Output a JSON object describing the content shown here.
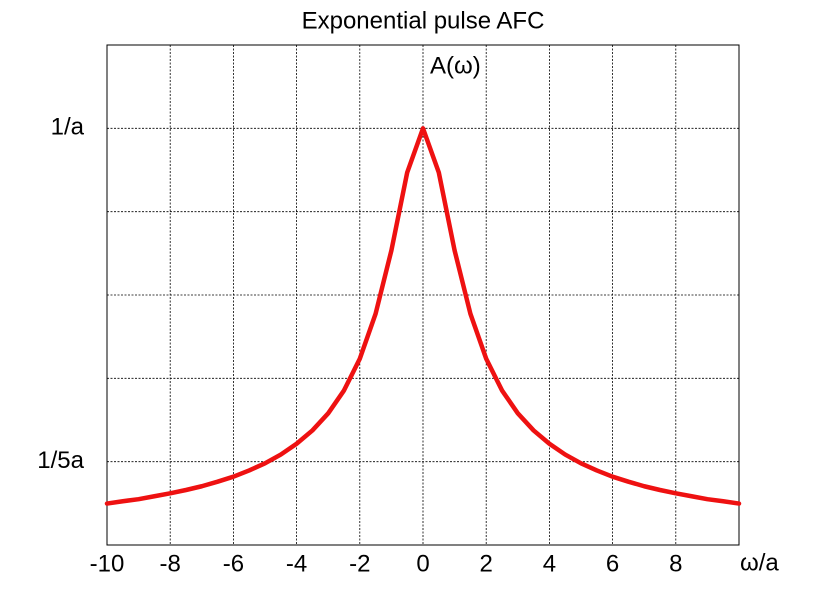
{
  "chart_data": {
    "type": "line",
    "title": "Exponential pulse AFC",
    "x_label": "ω/a",
    "y_label": "A(ω)",
    "xlim": [
      -10,
      10
    ],
    "ylim": [
      0,
      1.2
    ],
    "xticks": [
      -10,
      -8,
      -6,
      -4,
      -2,
      0,
      2,
      4,
      6,
      8
    ],
    "yticks": [
      {
        "value": 0.2,
        "label": "1/5a"
      },
      {
        "value": 1,
        "label": "1/a"
      }
    ],
    "ygrid": [
      0.2,
      0.4,
      0.6,
      0.8,
      1.0
    ],
    "grid": true,
    "x": [
      -10,
      -9.5,
      -9,
      -8.5,
      -8,
      -7.5,
      -7,
      -6.5,
      -6,
      -5.5,
      -5,
      -4.5,
      -4,
      -3.5,
      -3,
      -2.5,
      -2,
      -1.5,
      -1,
      -0.5,
      0,
      0.5,
      1,
      1.5,
      2,
      2.5,
      3,
      3.5,
      4,
      4.5,
      5,
      5.5,
      6,
      6.5,
      7,
      7.5,
      8,
      8.5,
      9,
      9.5,
      10
    ],
    "series": [
      {
        "name": "A(ω)",
        "color": "#ee1111",
        "values": [
          0.0995,
          0.105,
          0.11,
          0.117,
          0.124,
          0.132,
          0.141,
          0.152,
          0.164,
          0.179,
          0.196,
          0.217,
          0.243,
          0.275,
          0.316,
          0.371,
          0.447,
          0.555,
          0.707,
          0.894,
          1,
          0.894,
          0.707,
          0.555,
          0.447,
          0.371,
          0.316,
          0.275,
          0.243,
          0.217,
          0.196,
          0.179,
          0.164,
          0.152,
          0.141,
          0.132,
          0.124,
          0.117,
          0.11,
          0.105,
          0.0995
        ]
      }
    ]
  }
}
